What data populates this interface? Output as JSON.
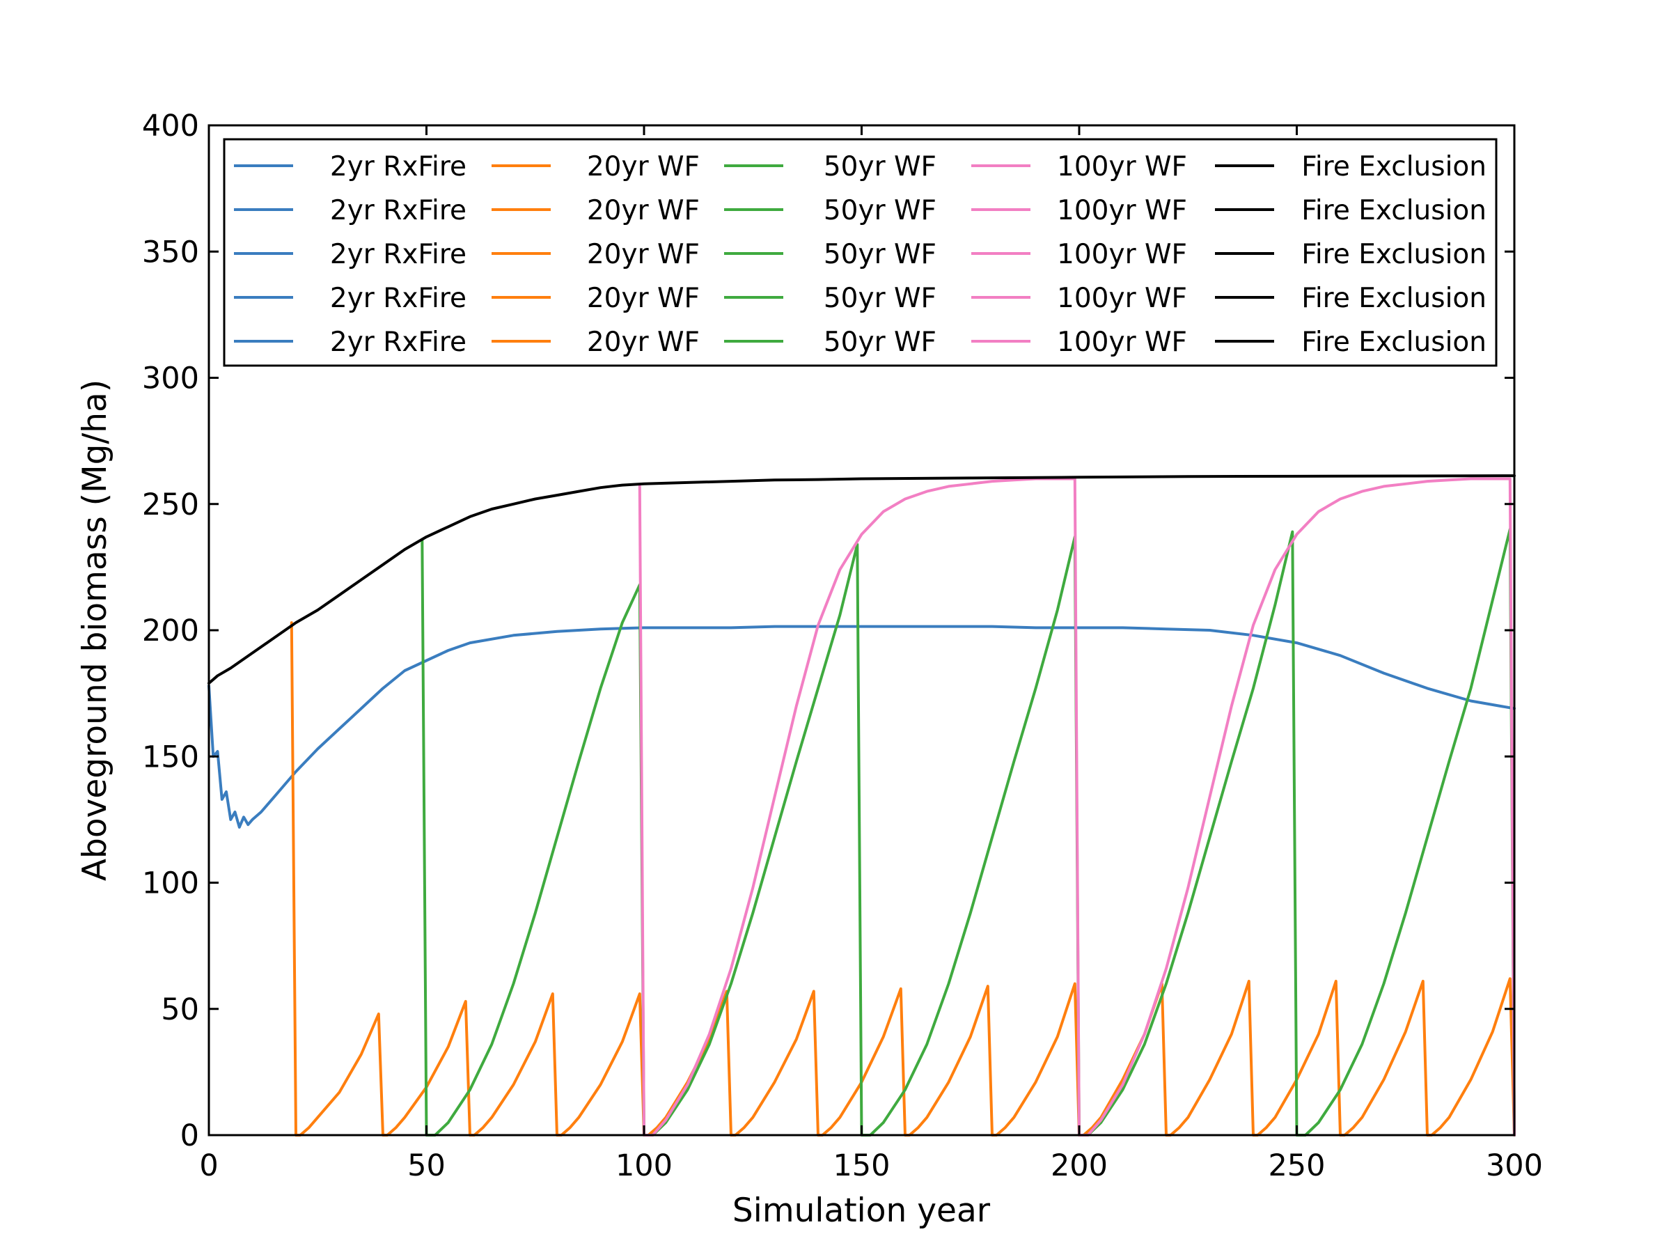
{
  "chart_data": {
    "type": "line",
    "xlabel": "Simulation year",
    "ylabel": "Aboveground biomass (Mg/ha)",
    "xlim": [
      0,
      300
    ],
    "ylim": [
      0,
      400
    ],
    "xticks": [
      0,
      50,
      100,
      150,
      200,
      250,
      300
    ],
    "yticks": [
      0,
      50,
      100,
      150,
      200,
      250,
      300,
      350,
      400
    ],
    "grid": false,
    "legend": {
      "placement": "top",
      "columns": [
        {
          "label": "2yr RxFire",
          "color": "#3a7dbf",
          "repeat": 5
        },
        {
          "label": "20yr WF",
          "color": "#ff7f0e",
          "repeat": 5
        },
        {
          "label": "50yr WF",
          "color": "#3faa3f",
          "repeat": 5
        },
        {
          "label": "100yr WF",
          "color": "#f27fc3",
          "repeat": 5
        },
        {
          "label": "Fire Exclusion",
          "color": "#000000",
          "repeat": 5
        }
      ]
    },
    "series": [
      {
        "name": "2yr RxFire",
        "color": "#3a7dbf",
        "x": [
          0,
          1,
          2,
          3,
          4,
          5,
          6,
          7,
          8,
          9,
          10,
          12,
          15,
          18,
          20,
          25,
          30,
          35,
          40,
          45,
          50,
          55,
          60,
          70,
          80,
          90,
          100,
          110,
          120,
          130,
          140,
          150,
          160,
          170,
          180,
          190,
          200,
          210,
          220,
          230,
          240,
          250,
          260,
          270,
          280,
          290,
          300
        ],
        "y": [
          178,
          150,
          152,
          133,
          136,
          125,
          128,
          122,
          126,
          123,
          125,
          128,
          134,
          140,
          144,
          153,
          161,
          169,
          177,
          184,
          188,
          192,
          195,
          198,
          199.5,
          200.5,
          201,
          201,
          201,
          201.5,
          201.5,
          201.5,
          201.5,
          201.5,
          201.5,
          201,
          201,
          201,
          200.5,
          200,
          198,
          195,
          190,
          183,
          177,
          172,
          169
        ]
      },
      {
        "name": "20yr WF",
        "color": "#ff7f0e",
        "x": [
          19,
          20,
          21,
          23,
          25,
          30,
          35,
          39,
          40,
          41,
          43,
          45,
          50,
          55,
          59,
          60,
          61,
          63,
          65,
          70,
          75,
          79,
          80,
          81,
          83,
          85,
          90,
          95,
          99,
          100,
          101,
          103,
          105,
          110,
          115,
          119,
          120,
          121,
          123,
          125,
          130,
          135,
          139,
          140,
          141,
          143,
          145,
          150,
          155,
          159,
          160,
          161,
          163,
          165,
          170,
          175,
          179,
          180,
          181,
          183,
          185,
          190,
          195,
          199,
          200,
          201,
          203,
          205,
          210,
          215,
          219,
          220,
          221,
          223,
          225,
          230,
          235,
          239,
          240,
          241,
          243,
          245,
          250,
          255,
          259,
          260,
          261,
          263,
          265,
          270,
          275,
          279,
          280,
          281,
          283,
          285,
          290,
          295,
          299,
          300
        ],
        "y": [
          203,
          0,
          0,
          3,
          7,
          17,
          32,
          48,
          0,
          0,
          3,
          7,
          19,
          35,
          53,
          0,
          0,
          3,
          7,
          20,
          37,
          56,
          0,
          0,
          3,
          7,
          20,
          37,
          56,
          0,
          0,
          3,
          7,
          21,
          38,
          57,
          0,
          0,
          3,
          7,
          21,
          38,
          57,
          0,
          0,
          3,
          7,
          21,
          39,
          58,
          0,
          0,
          3,
          7,
          21,
          39,
          59,
          0,
          0,
          3,
          7,
          21,
          39,
          60,
          0,
          0,
          3,
          7,
          22,
          40,
          60,
          0,
          0,
          3,
          7,
          22,
          40,
          61,
          0,
          0,
          3,
          7,
          22,
          40,
          61,
          0,
          0,
          3,
          7,
          22,
          41,
          61,
          0,
          0,
          3,
          7,
          22,
          41,
          62,
          0
        ]
      },
      {
        "name": "50yr WF",
        "color": "#3faa3f",
        "x": [
          49,
          50,
          52,
          55,
          60,
          65,
          70,
          75,
          80,
          85,
          90,
          95,
          99,
          100,
          102,
          105,
          110,
          115,
          120,
          125,
          130,
          135,
          140,
          145,
          149,
          150,
          152,
          155,
          160,
          165,
          170,
          175,
          180,
          185,
          190,
          195,
          199,
          200,
          202,
          205,
          210,
          215,
          220,
          225,
          230,
          235,
          240,
          245,
          249,
          250,
          252,
          255,
          260,
          265,
          270,
          275,
          280,
          285,
          290,
          295,
          299,
          300
        ],
        "y": [
          236,
          0,
          0,
          5,
          18,
          36,
          60,
          88,
          118,
          148,
          177,
          203,
          218,
          0,
          0,
          5,
          18,
          36,
          60,
          88,
          118,
          148,
          177,
          206,
          234,
          0,
          0,
          5,
          18,
          36,
          60,
          88,
          118,
          148,
          177,
          208,
          237,
          0,
          0,
          5,
          18,
          36,
          60,
          88,
          118,
          148,
          177,
          210,
          239,
          0,
          0,
          5,
          18,
          36,
          60,
          88,
          118,
          148,
          177,
          212,
          240,
          0
        ]
      },
      {
        "name": "100yr WF",
        "color": "#f27fc3",
        "x": [
          99,
          100,
          102,
          105,
          110,
          115,
          120,
          125,
          130,
          135,
          140,
          145,
          150,
          155,
          160,
          165,
          170,
          175,
          180,
          185,
          190,
          195,
          199,
          200,
          202,
          205,
          210,
          215,
          220,
          225,
          230,
          235,
          240,
          245,
          250,
          255,
          260,
          265,
          270,
          275,
          280,
          285,
          290,
          295,
          299,
          300
        ],
        "y": [
          257,
          0,
          0,
          6,
          20,
          40,
          66,
          98,
          134,
          170,
          202,
          224,
          238,
          247,
          252,
          255,
          257,
          258,
          259,
          259.5,
          260,
          260,
          260,
          0,
          0,
          6,
          20,
          40,
          66,
          98,
          134,
          170,
          202,
          224,
          238,
          247,
          252,
          255,
          257,
          258,
          259,
          259.5,
          260,
          260,
          260,
          0
        ]
      },
      {
        "name": "Fire Exclusion",
        "color": "#000000",
        "x": [
          0,
          2,
          5,
          10,
          15,
          20,
          25,
          30,
          35,
          40,
          45,
          50,
          55,
          60,
          65,
          70,
          75,
          80,
          85,
          90,
          95,
          100,
          110,
          120,
          130,
          140,
          150,
          175,
          200,
          225,
          250,
          275,
          300
        ],
        "y": [
          179,
          182,
          185,
          191,
          197,
          203,
          208,
          214,
          220,
          226,
          232,
          237,
          241,
          245,
          248,
          250,
          252,
          253.5,
          255,
          256.5,
          257.5,
          258,
          258.5,
          259,
          259.5,
          259.7,
          260,
          260.3,
          260.6,
          260.9,
          261,
          261.1,
          261.2
        ]
      }
    ]
  }
}
